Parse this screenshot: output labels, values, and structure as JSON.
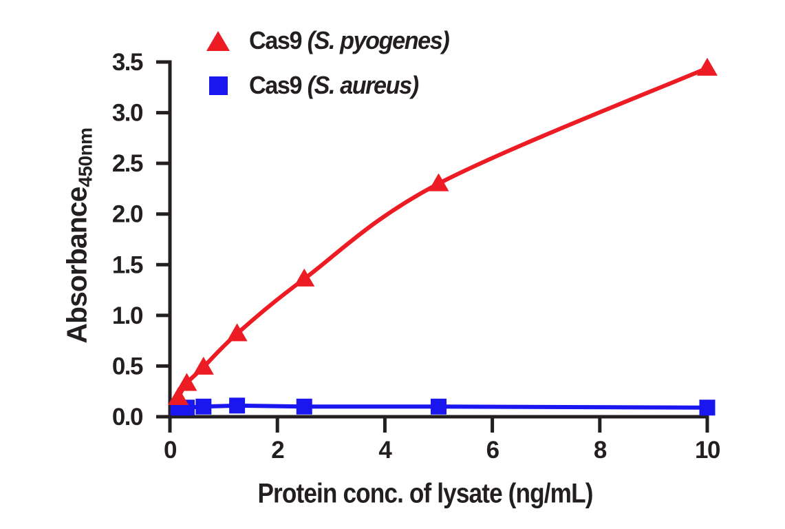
{
  "figure": {
    "background": "#ffffff",
    "text_color": "#231f20",
    "axis_color": "#231f20"
  },
  "chart_data": {
    "type": "line",
    "title": "",
    "xlabel": "Protein conc. of lysate (ng/mL)",
    "ylabel_main": "Absorbance",
    "ylabel_sub": "450nm",
    "xlim": [
      0,
      10
    ],
    "ylim": [
      0,
      3.5
    ],
    "grid": false,
    "legend_position": "top-left",
    "x_ticks": [
      0,
      2,
      4,
      6,
      8,
      10
    ],
    "x_tick_labels": [
      "0",
      "2",
      "4",
      "6",
      "8",
      "10"
    ],
    "y_ticks": [
      0,
      0.5,
      1,
      1.5,
      2,
      2.5,
      3,
      3.5
    ],
    "y_tick_labels": [
      "0.0",
      "0.5",
      "1.0",
      "1.5",
      "2.0",
      "2.5",
      "3.0",
      "3.5"
    ],
    "x": [
      0.156,
      0.313,
      0.625,
      1.25,
      2.5,
      5,
      10
    ],
    "series": [
      {
        "name": "Cas9",
        "strain": "(S. pyogenes)",
        "marker": "triangle",
        "color": "#ed1c24",
        "curve": "smooth",
        "values": [
          0.19,
          0.33,
          0.49,
          0.82,
          1.36,
          2.3,
          3.44
        ]
      },
      {
        "name": "Cas9",
        "strain": "(S. aureus)",
        "marker": "square",
        "color": "#1a16f0",
        "curve": "straight",
        "values": [
          0.09,
          0.09,
          0.1,
          0.11,
          0.1,
          0.1,
          0.09
        ]
      }
    ]
  }
}
